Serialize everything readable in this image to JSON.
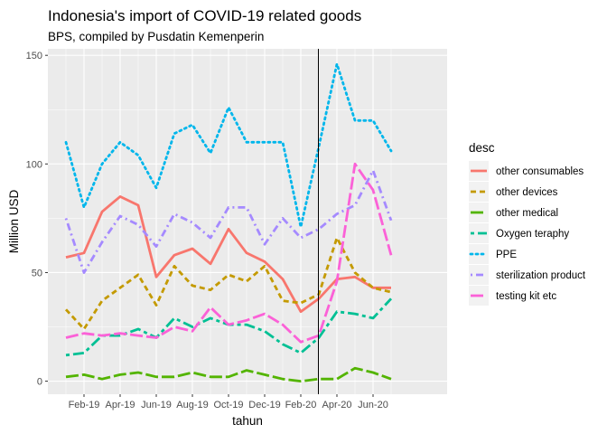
{
  "chart_data": {
    "type": "line",
    "title": "Indonesia's import of COVID-19 related goods",
    "subtitle": "BPS, compiled by Pusdatin Kemenperin",
    "xlabel": "tahun",
    "ylabel": "Million USD",
    "legend_title": "desc",
    "legend_position": "right",
    "grid": true,
    "ylim": [
      -6,
      153
    ],
    "y_ticks": [
      0,
      50,
      100,
      150
    ],
    "x_ticks": [
      "Feb-19",
      "Apr-19",
      "Jun-19",
      "Aug-19",
      "Oct-19",
      "Dec-19",
      "Feb-20",
      "Apr-20",
      "Jun-20"
    ],
    "x": [
      "Jan-19",
      "Feb-19",
      "Mar-19",
      "Apr-19",
      "May-19",
      "Jun-19",
      "Jul-19",
      "Aug-19",
      "Sep-19",
      "Oct-19",
      "Nov-19",
      "Dec-19",
      "Jan-20",
      "Feb-20",
      "Mar-20",
      "Apr-20",
      "May-20",
      "Jun-20",
      "Jul-20"
    ],
    "vertical_line_at": "Mar-20",
    "series": [
      {
        "name": "other consumables",
        "color": "#F8766D",
        "dash": "solid",
        "values": [
          57,
          59,
          78,
          85,
          81,
          48,
          58,
          61,
          54,
          70,
          59,
          55,
          47,
          32,
          38,
          47,
          48,
          43,
          43
        ]
      },
      {
        "name": "other devices",
        "color": "#C49A00",
        "dash": "dashed",
        "values": [
          33,
          24,
          37,
          43,
          49,
          35,
          53,
          44,
          42,
          49,
          46,
          53,
          37,
          36,
          40,
          66,
          50,
          43,
          41
        ]
      },
      {
        "name": "other medical",
        "color": "#53B400",
        "dash": "longdash",
        "values": [
          2,
          3,
          1,
          3,
          4,
          2,
          2,
          4,
          2,
          2,
          5,
          3,
          1,
          0,
          1,
          1,
          6,
          4,
          1
        ]
      },
      {
        "name": "Oxygen teraphy",
        "color": "#00C094",
        "dash": "twodash",
        "values": [
          12,
          13,
          21,
          21,
          24,
          20,
          29,
          25,
          29,
          26,
          26,
          23,
          17,
          13,
          20,
          32,
          31,
          29,
          38
        ]
      },
      {
        "name": "PPE",
        "color": "#00B6EB",
        "dash": "dotted",
        "values": [
          110,
          80,
          100,
          110,
          104,
          89,
          114,
          118,
          105,
          126,
          110,
          110,
          110,
          71,
          108,
          146,
          120,
          120,
          106
        ]
      },
      {
        "name": "sterilization product",
        "color": "#A58AFF",
        "dash": "dotdash",
        "values": [
          75,
          50,
          64,
          76,
          72,
          62,
          77,
          73,
          66,
          80,
          80,
          63,
          75,
          66,
          70,
          77,
          81,
          97,
          74
        ]
      },
      {
        "name": "testing kit etc",
        "color": "#FB61D7",
        "dash": "longdash",
        "values": [
          20,
          22,
          21,
          22,
          21,
          20,
          25,
          23,
          34,
          26,
          28,
          31,
          26,
          18,
          21,
          46,
          100,
          88,
          58
        ]
      }
    ]
  }
}
